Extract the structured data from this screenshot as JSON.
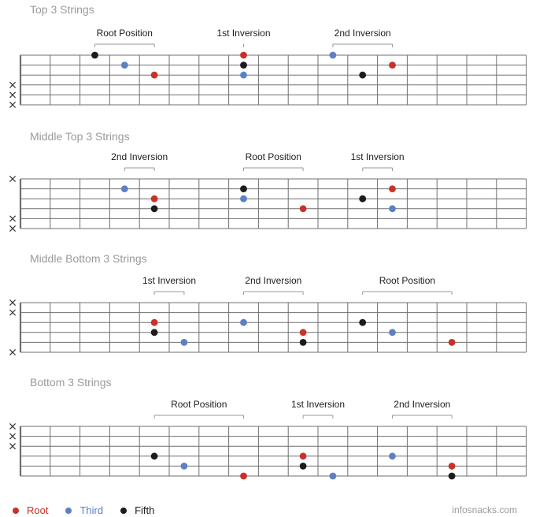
{
  "colors": {
    "root": "#c8322a",
    "third": "#5b80c8",
    "fifth": "#1c1c1c",
    "grid": "#6f6f6f",
    "title": "#9a9a9a"
  },
  "sections": [
    {
      "title": "Top 3 Strings",
      "muted": [
        3,
        4,
        5
      ],
      "groups": [
        {
          "label": "Root Position",
          "from": 3,
          "to": 5
        },
        {
          "label": "1st Inversion",
          "from": 8,
          "to": 8
        },
        {
          "label": "2nd Inversion",
          "from": 11,
          "to": 13
        }
      ],
      "notes": [
        {
          "string": 0,
          "fret": 3,
          "type": "fifth"
        },
        {
          "string": 1,
          "fret": 4,
          "type": "third"
        },
        {
          "string": 2,
          "fret": 5,
          "type": "root"
        },
        {
          "string": 0,
          "fret": 8,
          "type": "root"
        },
        {
          "string": 1,
          "fret": 8,
          "type": "fifth"
        },
        {
          "string": 2,
          "fret": 8,
          "type": "third"
        },
        {
          "string": 0,
          "fret": 11,
          "type": "third"
        },
        {
          "string": 1,
          "fret": 13,
          "type": "root"
        },
        {
          "string": 2,
          "fret": 12,
          "type": "fifth"
        }
      ]
    },
    {
      "title": "Middle Top 3 Strings",
      "muted": [
        0,
        4,
        5
      ],
      "groups": [
        {
          "label": "2nd Inversion",
          "from": 4,
          "to": 5
        },
        {
          "label": "Root Position",
          "from": 8,
          "to": 10
        },
        {
          "label": "1st Inversion",
          "from": 12,
          "to": 13
        }
      ],
      "notes": [
        {
          "string": 1,
          "fret": 4,
          "type": "third"
        },
        {
          "string": 2,
          "fret": 5,
          "type": "root"
        },
        {
          "string": 3,
          "fret": 5,
          "type": "fifth"
        },
        {
          "string": 1,
          "fret": 8,
          "type": "fifth"
        },
        {
          "string": 2,
          "fret": 8,
          "type": "third"
        },
        {
          "string": 3,
          "fret": 10,
          "type": "root"
        },
        {
          "string": 1,
          "fret": 13,
          "type": "root"
        },
        {
          "string": 2,
          "fret": 12,
          "type": "fifth"
        },
        {
          "string": 3,
          "fret": 13,
          "type": "third"
        }
      ]
    },
    {
      "title": "Middle Bottom 3 Strings",
      "muted": [
        0,
        1,
        5
      ],
      "groups": [
        {
          "label": "1st Inversion",
          "from": 5,
          "to": 6
        },
        {
          "label": "2nd Inversion",
          "from": 8,
          "to": 10
        },
        {
          "label": "Root Position",
          "from": 12,
          "to": 15
        }
      ],
      "notes": [
        {
          "string": 2,
          "fret": 5,
          "type": "root"
        },
        {
          "string": 3,
          "fret": 5,
          "type": "fifth"
        },
        {
          "string": 4,
          "fret": 6,
          "type": "third"
        },
        {
          "string": 2,
          "fret": 8,
          "type": "third"
        },
        {
          "string": 3,
          "fret": 10,
          "type": "root"
        },
        {
          "string": 4,
          "fret": 10,
          "type": "fifth"
        },
        {
          "string": 2,
          "fret": 12,
          "type": "fifth"
        },
        {
          "string": 3,
          "fret": 13,
          "type": "third"
        },
        {
          "string": 4,
          "fret": 15,
          "type": "root"
        }
      ]
    },
    {
      "title": "Bottom 3 Strings",
      "muted": [
        0,
        1,
        2
      ],
      "groups": [
        {
          "label": "Root Position",
          "from": 5,
          "to": 8
        },
        {
          "label": "1st Inversion",
          "from": 10,
          "to": 11
        },
        {
          "label": "2nd Inversion",
          "from": 13,
          "to": 15
        }
      ],
      "notes": [
        {
          "string": 3,
          "fret": 5,
          "type": "fifth"
        },
        {
          "string": 4,
          "fret": 6,
          "type": "third"
        },
        {
          "string": 5,
          "fret": 8,
          "type": "root"
        },
        {
          "string": 3,
          "fret": 10,
          "type": "root"
        },
        {
          "string": 4,
          "fret": 10,
          "type": "fifth"
        },
        {
          "string": 5,
          "fret": 11,
          "type": "third"
        },
        {
          "string": 3,
          "fret": 13,
          "type": "third"
        },
        {
          "string": 4,
          "fret": 15,
          "type": "root"
        },
        {
          "string": 5,
          "fret": 15,
          "type": "fifth"
        }
      ]
    }
  ],
  "legend": [
    {
      "label": "Root",
      "type": "root"
    },
    {
      "label": "Third",
      "type": "third"
    },
    {
      "label": "Fifth",
      "type": "fifth"
    }
  ],
  "credit": "infosnacks.com"
}
